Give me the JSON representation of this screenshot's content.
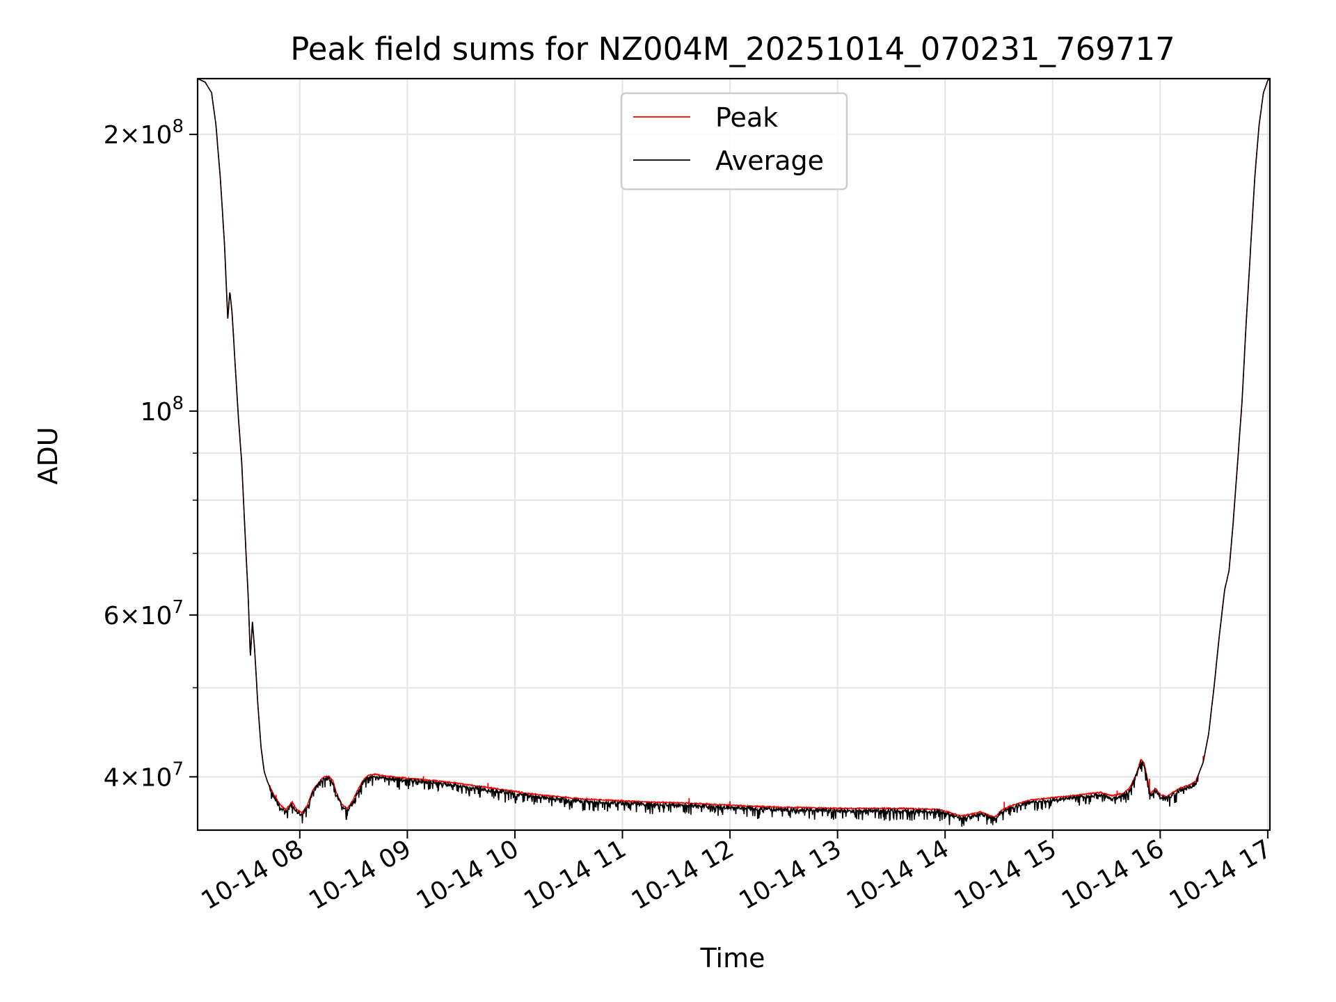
{
  "chart_data": {
    "type": "line",
    "title": "Peak field sums for NZ004M_20251014_070231_769717",
    "xlabel": "Time",
    "ylabel": "ADU",
    "yscale": "log",
    "ylim": [
      35000000,
      230000000
    ],
    "xlim_hours": [
      7.05,
      17.02
    ],
    "grid": true,
    "legend_position": "upper-center",
    "x_ticks": [
      {
        "hour": 8,
        "label": "10-14 08"
      },
      {
        "hour": 9,
        "label": "10-14 09"
      },
      {
        "hour": 10,
        "label": "10-14 10"
      },
      {
        "hour": 11,
        "label": "10-14 11"
      },
      {
        "hour": 12,
        "label": "10-14 12"
      },
      {
        "hour": 13,
        "label": "10-14 13"
      },
      {
        "hour": 14,
        "label": "10-14 14"
      },
      {
        "hour": 15,
        "label": "10-14 15"
      },
      {
        "hour": 16,
        "label": "10-14 16"
      },
      {
        "hour": 17,
        "label": "10-14 17"
      }
    ],
    "y_major_ticks": [
      {
        "value": 40000000,
        "mantissa": "4",
        "exp": "7"
      },
      {
        "value": 60000000,
        "mantissa": "6",
        "exp": "7"
      },
      {
        "value": 100000000,
        "mantissa": "",
        "exp": "8"
      },
      {
        "value": 200000000,
        "mantissa": "2",
        "exp": "8"
      }
    ],
    "y_minor_ticks": [
      50000000,
      70000000,
      80000000,
      90000000
    ],
    "series": [
      {
        "name": "Peak",
        "color": "#ff0000",
        "spikes": [
          [
            7.78,
            0.8
          ],
          [
            9.15,
            0.8
          ],
          [
            9.75,
            1.0
          ],
          [
            11.62,
            1.1
          ],
          [
            12.0,
            0.9
          ],
          [
            14.55,
            1.5
          ],
          [
            15.6,
            0.9
          ],
          [
            15.9,
            2.0
          ],
          [
            16.4,
            1.2
          ]
        ]
      },
      {
        "name": "Average",
        "color": "#000000",
        "points": [
          [
            7.05,
            230000000
          ],
          [
            7.12,
            228000000
          ],
          [
            7.18,
            222000000
          ],
          [
            7.22,
            205000000
          ],
          [
            7.26,
            180000000
          ],
          [
            7.3,
            152000000
          ],
          [
            7.33,
            126000000
          ],
          [
            7.35,
            135000000
          ],
          [
            7.37,
            128000000
          ],
          [
            7.4,
            112000000
          ],
          [
            7.43,
            98000000
          ],
          [
            7.46,
            88000000
          ],
          [
            7.49,
            74000000
          ],
          [
            7.52,
            63000000
          ],
          [
            7.54,
            54000000
          ],
          [
            7.56,
            59000000
          ],
          [
            7.58,
            55000000
          ],
          [
            7.61,
            48000000
          ],
          [
            7.64,
            43000000
          ],
          [
            7.67,
            40500000
          ],
          [
            7.7,
            39500000
          ],
          [
            7.73,
            38800000
          ],
          [
            7.77,
            38000000
          ],
          [
            7.82,
            37200000
          ],
          [
            7.87,
            36800000
          ],
          [
            7.93,
            37500000
          ],
          [
            7.97,
            36800000
          ],
          [
            8.02,
            36500000
          ],
          [
            8.07,
            37200000
          ],
          [
            8.12,
            38600000
          ],
          [
            8.17,
            39300000
          ],
          [
            8.22,
            39900000
          ],
          [
            8.27,
            40000000
          ],
          [
            8.31,
            39500000
          ],
          [
            8.34,
            38400000
          ],
          [
            8.39,
            37300000
          ],
          [
            8.44,
            36900000
          ],
          [
            8.49,
            37600000
          ],
          [
            8.54,
            38700000
          ],
          [
            8.59,
            39600000
          ],
          [
            8.64,
            40100000
          ],
          [
            8.7,
            40200000
          ],
          [
            8.8,
            40000000
          ],
          [
            9.0,
            39800000
          ],
          [
            9.2,
            39600000
          ],
          [
            9.4,
            39400000
          ],
          [
            9.6,
            39100000
          ],
          [
            9.8,
            38800000
          ],
          [
            10.0,
            38500000
          ],
          [
            10.2,
            38200000
          ],
          [
            10.4,
            38000000
          ],
          [
            10.6,
            37800000
          ],
          [
            10.8,
            37700000
          ],
          [
            11.0,
            37600000
          ],
          [
            11.2,
            37500000
          ],
          [
            11.4,
            37450000
          ],
          [
            11.6,
            37400000
          ],
          [
            11.8,
            37300000
          ],
          [
            12.0,
            37200000
          ],
          [
            12.2,
            37100000
          ],
          [
            12.5,
            37000000
          ],
          [
            12.8,
            36950000
          ],
          [
            13.0,
            36900000
          ],
          [
            13.3,
            36900000
          ],
          [
            13.6,
            36900000
          ],
          [
            13.95,
            36800000
          ],
          [
            14.05,
            36500000
          ],
          [
            14.15,
            36200000
          ],
          [
            14.25,
            36400000
          ],
          [
            14.33,
            36600000
          ],
          [
            14.4,
            36300000
          ],
          [
            14.46,
            36100000
          ],
          [
            14.52,
            36700000
          ],
          [
            14.6,
            37100000
          ],
          [
            14.7,
            37400000
          ],
          [
            14.8,
            37700000
          ],
          [
            15.0,
            37900000
          ],
          [
            15.2,
            38100000
          ],
          [
            15.35,
            38300000
          ],
          [
            15.45,
            38400000
          ],
          [
            15.55,
            38100000
          ],
          [
            15.65,
            38300000
          ],
          [
            15.72,
            38900000
          ],
          [
            15.78,
            40300000
          ],
          [
            15.82,
            41700000
          ],
          [
            15.85,
            41400000
          ],
          [
            15.88,
            39800000
          ],
          [
            15.91,
            38300000
          ],
          [
            15.96,
            38800000
          ],
          [
            16.0,
            38200000
          ],
          [
            16.06,
            38000000
          ],
          [
            16.12,
            38400000
          ],
          [
            16.2,
            38900000
          ],
          [
            16.27,
            39100000
          ],
          [
            16.33,
            39500000
          ],
          [
            16.4,
            41500000
          ],
          [
            16.45,
            44500000
          ],
          [
            16.5,
            50000000
          ],
          [
            16.55,
            57000000
          ],
          [
            16.6,
            64000000
          ],
          [
            16.64,
            67000000
          ],
          [
            16.68,
            76000000
          ],
          [
            16.72,
            88000000
          ],
          [
            16.76,
            102000000
          ],
          [
            16.8,
            125000000
          ],
          [
            16.84,
            150000000
          ],
          [
            16.88,
            180000000
          ],
          [
            16.92,
            205000000
          ],
          [
            16.96,
            222000000
          ],
          [
            17.0,
            229000000
          ],
          [
            17.02,
            230000000
          ]
        ]
      }
    ]
  }
}
